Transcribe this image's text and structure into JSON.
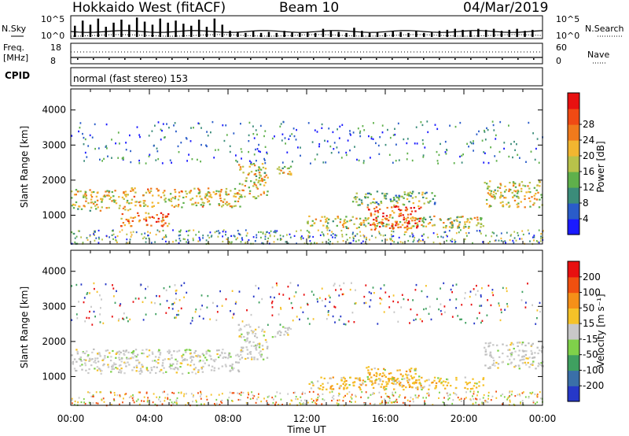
{
  "header": {
    "station": "Hokkaido West (fitACF)",
    "beam": "Beam 10",
    "date": "04/Mar/2019"
  },
  "noise_panel": {
    "left_label": "N.Sky",
    "right_label": "N.Search",
    "tick_high": "10^5",
    "tick_low": "10^0",
    "sky_spike_levels": [
      0.55,
      0.8,
      0.6,
      0.9,
      0.5,
      0.7,
      0.85,
      0.6,
      0.95,
      0.75,
      0.6,
      0.9,
      0.7,
      0.8,
      0.65,
      0.55,
      0.85,
      0.5,
      0.9,
      0.6,
      0.3,
      0.25,
      0.2,
      0.3,
      0.2,
      0.25,
      0.2,
      0.3,
      0.25,
      0.2,
      0.25,
      0.2,
      0.4,
      0.3,
      0.25,
      0.2,
      0.45,
      0.3,
      0.2,
      0.25,
      0.2,
      0.3,
      0.25,
      0.2,
      0.3,
      0.2,
      0.25,
      0.3,
      0.35,
      0.4,
      0.35,
      0.3,
      0.4,
      0.35,
      0.4,
      0.3,
      0.35,
      0.4,
      0.3,
      0.35
    ]
  },
  "freq_panel": {
    "left_label_1": "Freq.",
    "left_label_2": "[MHz]",
    "right_label": "Nave",
    "left_ticks": [
      "18",
      "8"
    ],
    "right_ticks": [
      "60",
      "0"
    ],
    "cpid_label": "CPID",
    "cpid_text": "normal (fast stereo) 153"
  },
  "chart_data": [
    {
      "type": "heatmap",
      "title": "",
      "xlabel": "",
      "ylabel": "Slant Range [km]",
      "x_ticks": [
        "00:00",
        "04:00",
        "08:00",
        "12:00",
        "16:00",
        "20:00",
        "00:00"
      ],
      "xlim_hours": [
        0,
        24
      ],
      "ylim_km": [
        180,
        4600
      ],
      "y_ticks": [
        1000,
        2000,
        3000,
        4000
      ],
      "colorbar": {
        "label": "Power [dB]",
        "ticks": [
          "4",
          "8",
          "12",
          "16",
          "20",
          "24",
          "28"
        ],
        "colors": [
          "#1a1aff",
          "#2a5cc9",
          "#3b8c7a",
          "#5fb04b",
          "#b8c24a",
          "#f2b630",
          "#f07a1c",
          "#f04a14",
          "#e81010"
        ]
      },
      "echo_regions": [
        {
          "t0": 0.0,
          "t1": 3.0,
          "r0": 1150,
          "r1": 1750,
          "level": 0.55
        },
        {
          "t0": 3.0,
          "t1": 8.6,
          "r0": 1250,
          "r1": 1800,
          "level": 0.6
        },
        {
          "t0": 2.5,
          "t1": 5.0,
          "r0": 700,
          "r1": 1100,
          "level": 0.8
        },
        {
          "t0": 8.5,
          "t1": 10.0,
          "r0": 1500,
          "r1": 2500,
          "level": 0.55
        },
        {
          "t0": 10.2,
          "t1": 11.2,
          "r0": 2150,
          "r1": 2450,
          "level": 0.5
        },
        {
          "t0": 12.0,
          "t1": 21.0,
          "r0": 650,
          "r1": 1000,
          "level": 0.5
        },
        {
          "t0": 15.0,
          "t1": 17.8,
          "r0": 600,
          "r1": 1300,
          "level": 0.85
        },
        {
          "t0": 14.3,
          "t1": 18.5,
          "r0": 1300,
          "r1": 1700,
          "level": 0.35
        },
        {
          "t0": 21.0,
          "t1": 24.0,
          "r0": 1250,
          "r1": 2000,
          "level": 0.55
        }
      ]
    },
    {
      "type": "heatmap",
      "title": "",
      "xlabel": "Time UT",
      "ylabel": "Slant Range [km]",
      "x_ticks": [
        "00:00",
        "04:00",
        "08:00",
        "12:00",
        "16:00",
        "20:00",
        "00:00"
      ],
      "xlim_hours": [
        0,
        24
      ],
      "ylim_km": [
        180,
        4600
      ],
      "y_ticks": [
        1000,
        2000,
        3000,
        4000
      ],
      "colorbar": {
        "label": "Velocity [m s⁻¹]",
        "ticks": [
          "200",
          "100",
          "50",
          "15",
          "-15",
          "-50",
          "-100",
          "-200"
        ],
        "colors": [
          "#2638c8",
          "#3a6fa8",
          "#3fa060",
          "#7fd14a",
          "#c8c8c8",
          "#f5c228",
          "#f59018",
          "#f05010",
          "#e81010"
        ]
      },
      "echo_regions": [
        {
          "t0": 0.0,
          "t1": 8.6,
          "r0": 1100,
          "r1": 1800,
          "level": "grey"
        },
        {
          "t0": 8.5,
          "t1": 10.0,
          "r0": 1500,
          "r1": 2500,
          "level": "grey"
        },
        {
          "t0": 10.2,
          "t1": 11.2,
          "r0": 2150,
          "r1": 2450,
          "level": "grey"
        },
        {
          "t0": 12.0,
          "t1": 21.0,
          "r0": 650,
          "r1": 1000,
          "level": "orange"
        },
        {
          "t0": 15.0,
          "t1": 17.8,
          "r0": 700,
          "r1": 1300,
          "level": "orange"
        },
        {
          "t0": 21.0,
          "t1": 24.0,
          "r0": 1250,
          "r1": 2000,
          "level": "grey"
        }
      ]
    }
  ]
}
